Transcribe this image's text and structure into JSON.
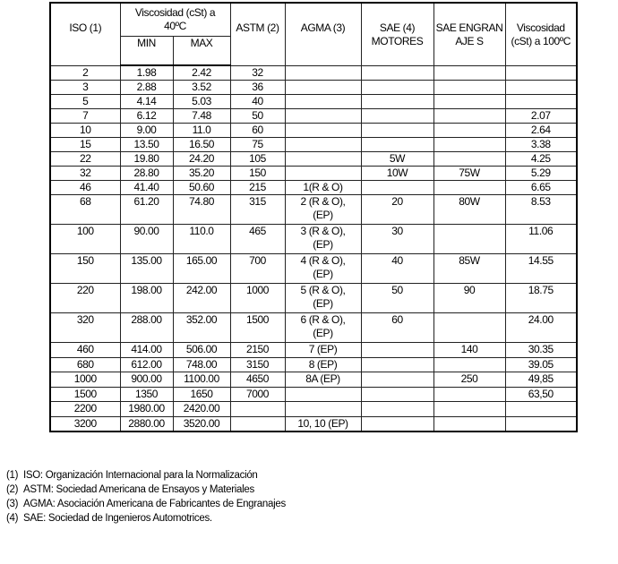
{
  "table": {
    "headers": {
      "iso": "ISO (1)",
      "visc40": "Viscosidad (cSt) a 40ºC",
      "min": "MIN",
      "max": "MAX",
      "astm": "ASTM (2)",
      "agma": "AGMA (3)",
      "sae_motores": "SAE (4) MOTORES",
      "sae_engranajes": "SAE ENGRANAJE S",
      "visc100": "Viscosidad (cSt) a 100ºC"
    },
    "rows": [
      [
        "2",
        "1.98",
        "2.42",
        "32",
        "",
        "",
        "",
        ""
      ],
      [
        "3",
        "2.88",
        "3.52",
        "36",
        "",
        "",
        "",
        ""
      ],
      [
        "5",
        "4.14",
        "5.03",
        "40",
        "",
        "",
        "",
        ""
      ],
      [
        "7",
        "6.12",
        "7.48",
        "50",
        "",
        "",
        "",
        "2.07"
      ],
      [
        "10",
        "9.00",
        "11.0",
        "60",
        "",
        "",
        "",
        "2.64"
      ],
      [
        "15",
        "13.50",
        "16.50",
        "75",
        "",
        "",
        "",
        "3.38"
      ],
      [
        "22",
        "19.80",
        "24.20",
        "105",
        "",
        "5W",
        "",
        "4.25"
      ],
      [
        "32",
        "28.80",
        "35.20",
        "150",
        "",
        "10W",
        "75W",
        "5.29"
      ],
      [
        "46",
        "41.40",
        "50.60",
        "215",
        "1(R & O)",
        "",
        "",
        "6.65"
      ],
      [
        "68",
        "61.20",
        "74.80",
        "315",
        "2 (R & O), (EP)",
        "20",
        "80W",
        "8.53"
      ],
      [
        "100",
        "90.00",
        "110.0",
        "465",
        "3 (R & O), (EP)",
        "30",
        "",
        "11.06"
      ],
      [
        "150",
        "135.00",
        "165.00",
        "700",
        "4 (R & O), (EP)",
        "40",
        "85W",
        "14.55"
      ],
      [
        "220",
        "198.00",
        "242.00",
        "1000",
        "5 (R & O), (EP)",
        "50",
        "90",
        "18.75"
      ],
      [
        "320",
        "288.00",
        "352.00",
        "1500",
        "6 (R & O), (EP)",
        "60",
        "",
        "24.00"
      ],
      [
        "460",
        "414.00",
        "506.00",
        "2150",
        "7 (EP)",
        "",
        "140",
        "30.35"
      ],
      [
        "680",
        "612.00",
        "748.00",
        "3150",
        "8 (EP)",
        "",
        "",
        "39.05"
      ],
      [
        "1000",
        "900.00",
        "1100.00",
        "4650",
        "8A (EP)",
        "",
        "250",
        "49,85"
      ],
      [
        "1500",
        "1350",
        "1650",
        "7000",
        "",
        "",
        "",
        "63,50"
      ],
      [
        "2200",
        "1980.00",
        "2420.00",
        "",
        "",
        "",
        "",
        ""
      ],
      [
        "3200",
        "2880.00",
        "3520.00",
        "",
        "10, 10 (EP)",
        "",
        "",
        ""
      ]
    ]
  },
  "footnotes": [
    {
      "num": "(1)",
      "text": "ISO: Organización Internacional para la Normalización"
    },
    {
      "num": "(2)",
      "text": "ASTM: Sociedad Americana de Ensayos y Materiales"
    },
    {
      "num": "(3)",
      "text": "AGMA: Asociación Americana de Fabricantes de Engranajes"
    },
    {
      "num": "(4)",
      "text": "SAE: Sociedad de Ingenieros Automotrices."
    }
  ]
}
